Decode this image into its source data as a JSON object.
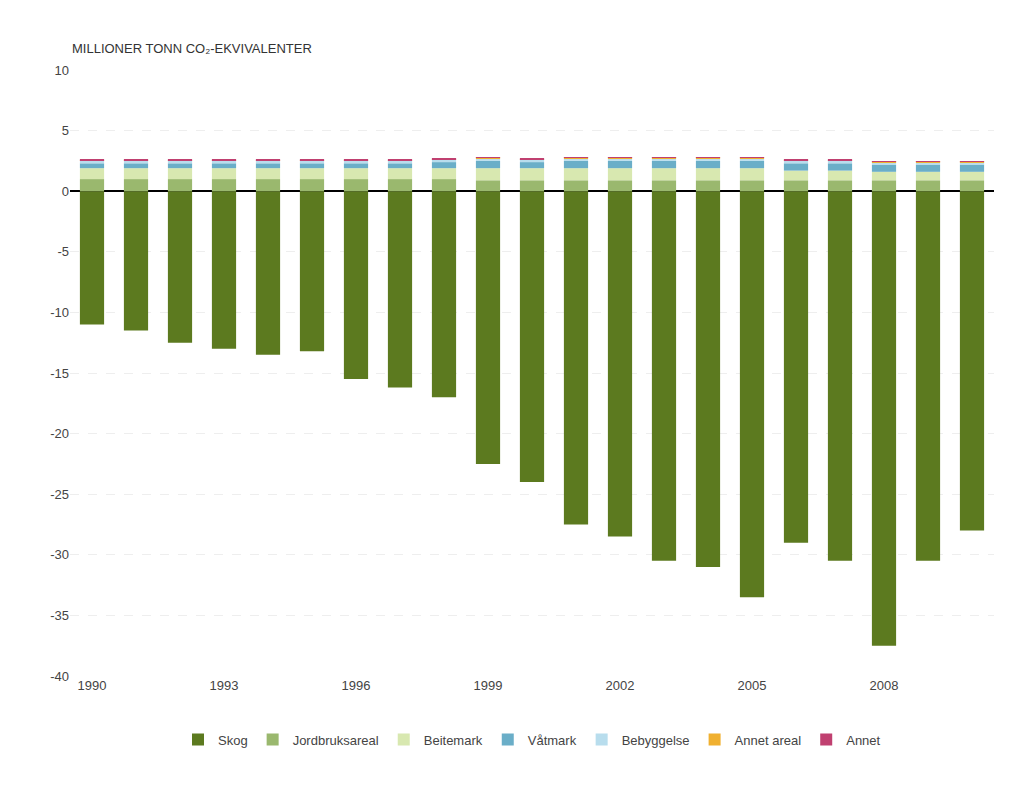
{
  "chart_data": {
    "type": "bar",
    "stacked": true,
    "ylabel": "MILLIONER TONN CO₂-EKVIVALENTER",
    "categories": [
      "1990",
      null,
      null,
      "1993",
      null,
      null,
      "1996",
      null,
      null,
      "1999",
      null,
      null,
      "2002",
      null,
      null,
      "2005",
      null,
      null,
      "2008",
      null,
      null
    ],
    "series": [
      {
        "name": "Skog",
        "color": "#5c7a1f",
        "values": [
          -11.0,
          -11.5,
          -12.5,
          -13.0,
          -13.5,
          -13.2,
          -15.5,
          -16.2,
          -17.0,
          -22.5,
          -24.0,
          -27.5,
          -28.5,
          -30.5,
          -31.0,
          -33.5,
          -29.0,
          -30.5,
          -37.5,
          -30.5,
          -28.0
        ]
      },
      {
        "name": "Jordbruksareal",
        "color": "#9ab86e",
        "values": [
          1.0,
          1.0,
          1.0,
          1.0,
          1.0,
          1.0,
          1.0,
          1.0,
          1.0,
          0.9,
          0.9,
          0.9,
          0.9,
          0.9,
          0.9,
          0.9,
          0.9,
          0.9,
          0.9,
          0.9,
          0.9
        ]
      },
      {
        "name": "Beitemark",
        "color": "#d8e8b0",
        "values": [
          0.9,
          0.9,
          0.9,
          0.9,
          0.9,
          0.9,
          0.9,
          0.9,
          0.9,
          1.0,
          1.0,
          1.0,
          1.0,
          1.0,
          1.0,
          1.0,
          0.8,
          0.8,
          0.7,
          0.7,
          0.7
        ]
      },
      {
        "name": "Våtmark",
        "color": "#6aaec8",
        "values": [
          0.4,
          0.4,
          0.4,
          0.4,
          0.4,
          0.4,
          0.4,
          0.4,
          0.5,
          0.6,
          0.5,
          0.6,
          0.6,
          0.6,
          0.6,
          0.6,
          0.6,
          0.6,
          0.6,
          0.6,
          0.6
        ]
      },
      {
        "name": "Bebyggelse",
        "color": "#b8dded",
        "values": [
          0.2,
          0.2,
          0.2,
          0.2,
          0.2,
          0.2,
          0.2,
          0.2,
          0.2,
          0.2,
          0.2,
          0.2,
          0.2,
          0.2,
          0.2,
          0.2,
          0.2,
          0.2,
          0.2,
          0.2,
          0.2
        ]
      },
      {
        "name": "Annet areal",
        "color": "#f0b030",
        "values": [
          0.05,
          0.05,
          0.05,
          0.05,
          0.05,
          0.05,
          0.05,
          0.05,
          0.05,
          0.05,
          0.05,
          0.05,
          0.05,
          0.05,
          0.05,
          0.05,
          0.05,
          0.05,
          0.05,
          0.05,
          0.05
        ]
      },
      {
        "name": "Annet",
        "color": "#c04070",
        "values": [
          0.03,
          0.03,
          0.03,
          0.03,
          0.03,
          0.03,
          0.03,
          0.03,
          0.03,
          0.03,
          0.03,
          0.03,
          0.03,
          0.03,
          0.03,
          0.03,
          0.03,
          0.03,
          0.03,
          0.03,
          0.03
        ]
      }
    ],
    "ylim": [
      -40,
      10
    ],
    "yticks": [
      -40,
      -35,
      -30,
      -25,
      -20,
      -15,
      -10,
      -5,
      0,
      5,
      10
    ],
    "grid": true,
    "legend": "bottom"
  }
}
